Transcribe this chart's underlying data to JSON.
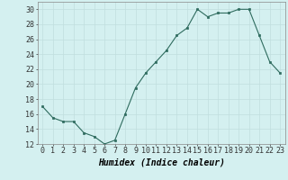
{
  "x": [
    0,
    1,
    2,
    3,
    4,
    5,
    6,
    7,
    8,
    9,
    10,
    11,
    12,
    13,
    14,
    15,
    16,
    17,
    18,
    19,
    20,
    21,
    22,
    23
  ],
  "y": [
    17,
    15.5,
    15,
    15,
    13.5,
    13,
    12,
    12.5,
    16,
    19.5,
    21.5,
    23,
    24.5,
    26.5,
    27.5,
    30,
    29,
    29.5,
    29.5,
    30,
    30,
    26.5,
    23,
    21.5
  ],
  "line_color": "#2e6b5e",
  "marker": "s",
  "marker_size": 2.0,
  "bg_color": "#d4f0f0",
  "grid_color": "#c0dede",
  "xlabel": "Humidex (Indice chaleur)",
  "xlabel_fontsize": 7,
  "tick_fontsize": 6,
  "ylim": [
    12,
    31
  ],
  "yticks": [
    12,
    14,
    16,
    18,
    20,
    22,
    24,
    26,
    28,
    30
  ],
  "xticks": [
    0,
    1,
    2,
    3,
    4,
    5,
    6,
    7,
    8,
    9,
    10,
    11,
    12,
    13,
    14,
    15,
    16,
    17,
    18,
    19,
    20,
    21,
    22,
    23
  ]
}
